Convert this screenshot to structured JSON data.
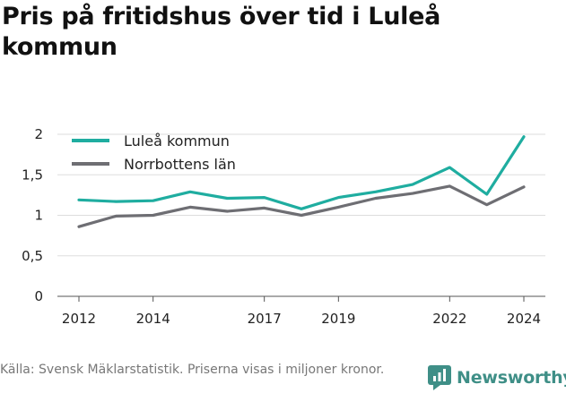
{
  "title": "Pris på fritidshus över tid i Luleå kommun",
  "source": "Källa: Svensk Mäklarstatistik. Priserna visas i miljoner kronor.",
  "brand": {
    "name": "Newsworthy",
    "icon": "newsworthy-logo-icon",
    "color": "#3f8f87"
  },
  "chart_data": {
    "type": "line",
    "x": [
      2012,
      2013,
      2014,
      2015,
      2016,
      2017,
      2018,
      2019,
      2020,
      2021,
      2022,
      2023,
      2024
    ],
    "x_ticks": [
      2012,
      2014,
      2017,
      2019,
      2022,
      2024
    ],
    "y_ticks": [
      0,
      0.5,
      1,
      1.5,
      2
    ],
    "y_tick_labels": [
      "0",
      "0,5",
      "1",
      "1,5",
      "2"
    ],
    "ylim": [
      0,
      2
    ],
    "xlim": [
      2012,
      2024
    ],
    "grid": true,
    "legend_position": "top-left",
    "series": [
      {
        "name": "Luleå kommun",
        "color": "#1fada0",
        "values": [
          1.19,
          1.17,
          1.18,
          1.29,
          1.21,
          1.22,
          1.08,
          1.22,
          1.29,
          1.38,
          1.59,
          1.26,
          1.97
        ]
      },
      {
        "name": "Norrbottens län",
        "color": "#6e6e73",
        "values": [
          0.86,
          0.99,
          1.0,
          1.1,
          1.05,
          1.09,
          1.0,
          1.1,
          1.21,
          1.27,
          1.36,
          1.13,
          1.35
        ]
      }
    ]
  }
}
